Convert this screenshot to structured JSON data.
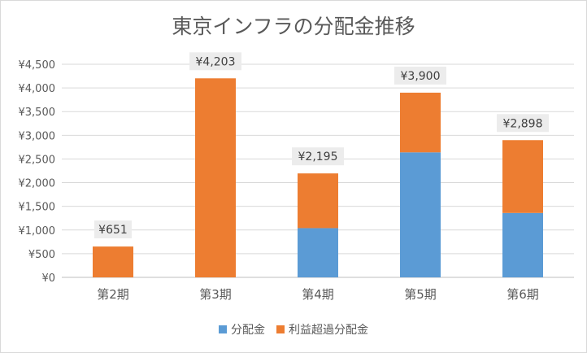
{
  "chart_data": {
    "type": "bar",
    "stacked": true,
    "title": "東京インフラの分配金推移",
    "categories": [
      "第2期",
      "第3期",
      "第4期",
      "第5期",
      "第6期"
    ],
    "series": [
      {
        "name": "分配金",
        "color": "#5b9bd5",
        "values": [
          0,
          0,
          1040,
          2640,
          1360
        ]
      },
      {
        "name": "利益超過分配金",
        "color": "#ed7d31",
        "values": [
          651,
          4203,
          1155,
          1260,
          1538
        ]
      }
    ],
    "totals": [
      651,
      4203,
      2195,
      3900,
      2898
    ],
    "total_labels": [
      "¥651",
      "¥4,203",
      "¥2,195",
      "¥3,900",
      "¥2,898"
    ],
    "y_ticks": [
      0,
      500,
      1000,
      1500,
      2000,
      2500,
      3000,
      3500,
      4000,
      4500
    ],
    "y_tick_labels": [
      "¥0",
      "¥500",
      "¥1,000",
      "¥1,500",
      "¥2,000",
      "¥2,500",
      "¥3,000",
      "¥3,500",
      "¥4,000",
      "¥4,500"
    ],
    "ylim": [
      0,
      4500
    ],
    "grid": true,
    "legend_position": "bottom"
  }
}
